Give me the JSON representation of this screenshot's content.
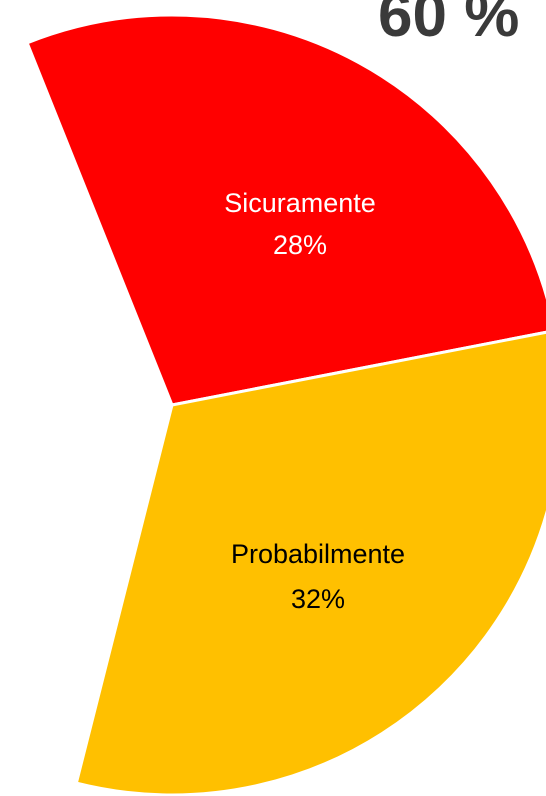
{
  "chart_data": {
    "type": "pie",
    "title": "60 %",
    "categories": [
      "Sicuramente",
      "Probabilmente"
    ],
    "values": [
      28,
      32
    ],
    "value_labels": [
      "28%",
      "32%"
    ],
    "colors": [
      "#ff0000",
      "#ffc000"
    ],
    "label_colors": [
      "#ffffff",
      "#000000"
    ]
  }
}
